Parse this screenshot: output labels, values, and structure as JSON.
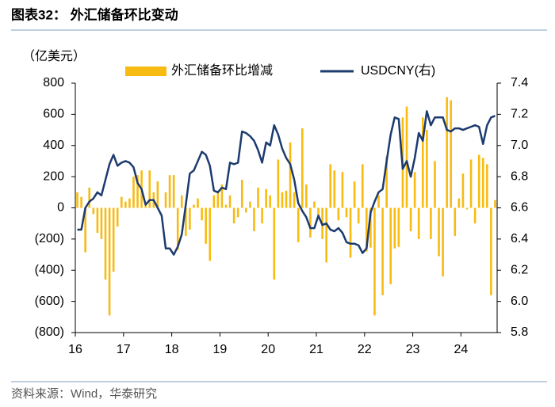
{
  "chart_data": {
    "type": "bar",
    "title": "图表32：  外汇储备环比变动",
    "y_label": "（亿美元）",
    "source": "资料来源：Wind，华泰研究",
    "legend": "top",
    "categories": [
      "16",
      null,
      null,
      null,
      null,
      null,
      null,
      null,
      null,
      null,
      null,
      null,
      "17",
      null,
      null,
      null,
      null,
      null,
      null,
      null,
      null,
      null,
      null,
      null,
      "18",
      null,
      null,
      null,
      null,
      null,
      null,
      null,
      null,
      null,
      null,
      null,
      "19",
      null,
      null,
      null,
      null,
      null,
      null,
      null,
      null,
      null,
      null,
      null,
      "20",
      null,
      null,
      null,
      null,
      null,
      null,
      null,
      null,
      null,
      null,
      null,
      "21",
      null,
      null,
      null,
      null,
      null,
      null,
      null,
      null,
      null,
      null,
      null,
      "22",
      null,
      null,
      null,
      null,
      null,
      null,
      null,
      null,
      null,
      null,
      null,
      "23",
      null,
      null,
      null,
      null,
      null,
      null,
      null,
      null,
      null,
      null,
      null,
      "24",
      null,
      null,
      null,
      null,
      null,
      null,
      null,
      null
    ],
    "series": [
      {
        "name": "外汇储备环比增减",
        "type": "bar",
        "color": "#f7bb12",
        "values": [
          100,
          70,
          -285,
          130,
          -40,
          -160,
          -200,
          -460,
          -690,
          -410,
          -120,
          70,
          40,
          60,
          200,
          210,
          240,
          30,
          240,
          100,
          170,
          0,
          100,
          210,
          210,
          -270,
          80,
          -180,
          -140,
          20,
          60,
          -80,
          -230,
          -340,
          80,
          110,
          150,
          20,
          80,
          -100,
          -60,
          180,
          -30,
          40,
          -150,
          130,
          -100,
          120,
          80,
          -460,
          310,
          100,
          110,
          420,
          100,
          -220,
          510,
          150,
          -190,
          40,
          -60,
          -200,
          -350,
          280,
          240,
          -80,
          230,
          -60,
          -320,
          170,
          -100,
          280,
          -280,
          -255,
          -690,
          80,
          -560,
          330,
          -490,
          -260,
          -250,
          580,
          650,
          -150,
          230,
          -200,
          580,
          500,
          -200,
          300,
          -310,
          -440,
          710,
          690,
          -180,
          60,
          220,
          -10,
          310,
          -100,
          340,
          320,
          280,
          -560,
          50
        ]
      },
      {
        "name": "USDCNY(右)",
        "type": "line",
        "axis": "y2",
        "color": "#1c3b6e",
        "values": [
          6.46,
          6.46,
          6.6,
          6.64,
          6.66,
          6.7,
          6.68,
          6.78,
          6.88,
          6.94,
          6.87,
          6.89,
          6.9,
          6.89,
          6.86,
          6.76,
          6.72,
          6.62,
          6.65,
          6.65,
          6.6,
          6.55,
          6.34,
          6.34,
          6.3,
          6.35,
          6.43,
          6.62,
          6.82,
          6.84,
          6.9,
          6.96,
          6.94,
          6.87,
          6.71,
          6.7,
          6.73,
          6.72,
          6.89,
          6.88,
          6.89,
          7.09,
          7.08,
          7.06,
          7.03,
          6.97,
          6.89,
          7.02,
          7.0,
          7.13,
          7.07,
          6.98,
          6.92,
          6.88,
          6.78,
          6.63,
          6.58,
          6.54,
          6.47,
          6.47,
          6.55,
          6.49,
          6.5,
          6.46,
          6.45,
          6.47,
          6.44,
          6.38,
          6.37,
          6.37,
          6.36,
          6.31,
          6.34,
          6.57,
          6.64,
          6.7,
          6.72,
          6.9,
          7.07,
          7.18,
          7.17,
          6.85,
          6.9,
          6.8,
          6.92,
          7.08,
          7.03,
          7.22,
          7.13,
          7.18,
          7.18,
          7.18,
          7.1,
          7.09,
          7.11,
          7.11,
          7.1,
          7.11,
          7.12,
          7.13,
          7.12,
          7.01,
          7.13,
          7.18,
          7.19
        ]
      }
    ],
    "ylim": [
      -800,
      800
    ],
    "yticks": [
      {
        "value": -800,
        "label": "(800)"
      },
      {
        "value": -600,
        "label": "(600)"
      },
      {
        "value": -400,
        "label": "(400)"
      },
      {
        "value": -200,
        "label": "(200)"
      },
      0,
      200,
      400,
      600,
      800
    ],
    "y2lim": [
      5.8,
      7.4
    ],
    "y2ticks": [
      5.8,
      {
        "value": 6,
        "label": "6.0"
      },
      6.2,
      6.4,
      6.6,
      6.8,
      {
        "value": 7,
        "label": "7.0"
      },
      7.2,
      7.4
    ]
  }
}
